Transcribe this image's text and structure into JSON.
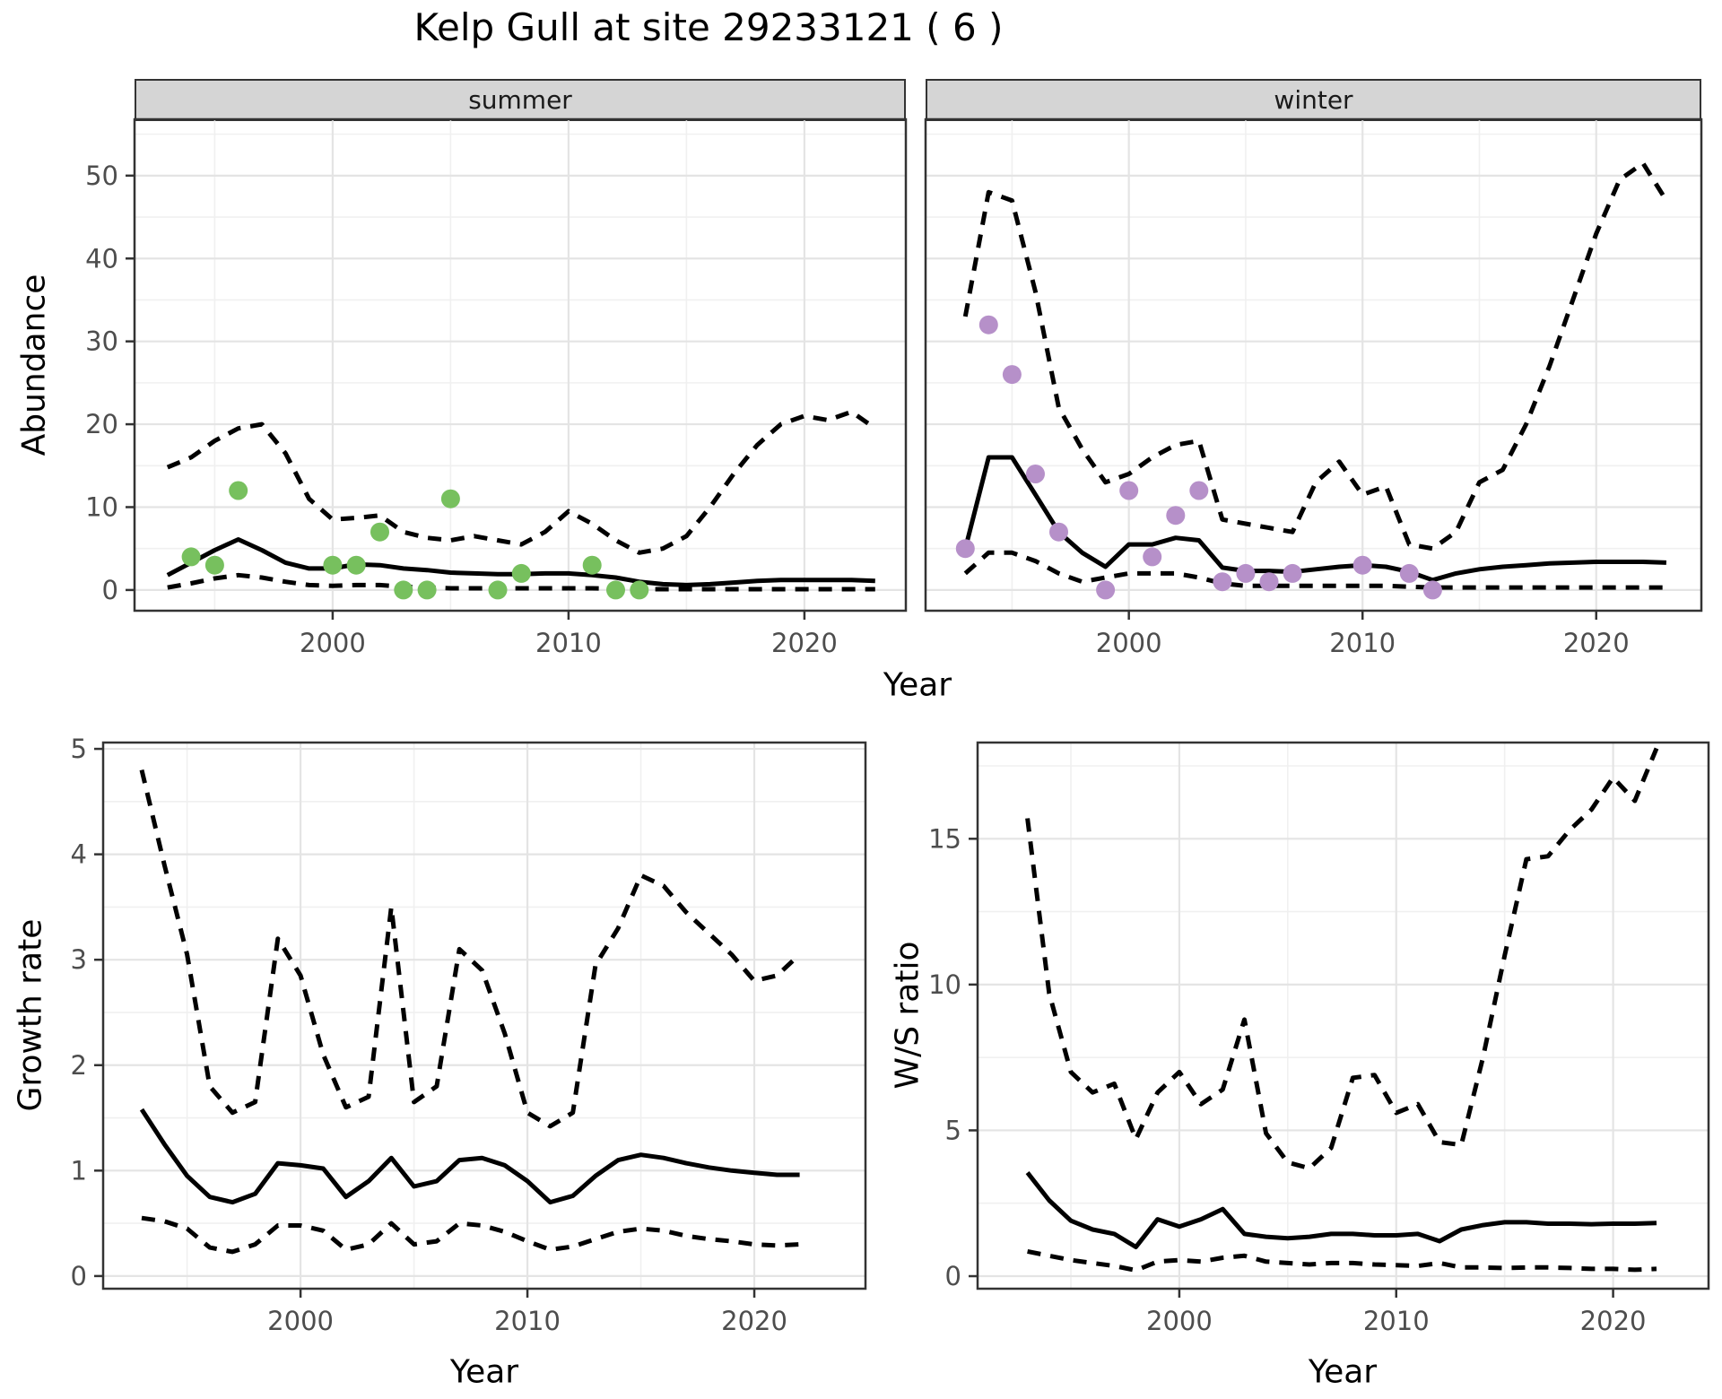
{
  "title": "Kelp Gull at site 29233121 ( 6 )",
  "colors": {
    "summer_points": "#77c05e",
    "winter_points": "#b690c9",
    "line": "#000000",
    "grid_major": "#e4e4e4",
    "grid_minor": "#f0f0f0",
    "panel_border": "#333333",
    "strip_bg": "#d5d5d5",
    "tick_label": "#4d4d4d"
  },
  "chart_data": [
    {
      "id": "abundance-summer",
      "type": "line",
      "facet_label": "summer",
      "xlabel": "Year",
      "ylabel": "Abundance",
      "xlim": [
        1991.6,
        2024.3
      ],
      "ylim": [
        -2.5,
        56.8
      ],
      "x_ticks": [
        2000,
        2010,
        2020
      ],
      "y_ticks": [
        0,
        10,
        20,
        30,
        40,
        50
      ],
      "x_minor": [
        1995,
        2005,
        2015,
        2025
      ],
      "y_minor": [
        5,
        15,
        25,
        35,
        45,
        55
      ],
      "x": [
        1993,
        1994,
        1995,
        1996,
        1997,
        1998,
        1999,
        2000,
        2001,
        2002,
        2003,
        2004,
        2005,
        2006,
        2007,
        2008,
        2009,
        2010,
        2011,
        2012,
        2013,
        2014,
        2015,
        2016,
        2017,
        2018,
        2019,
        2020,
        2021,
        2022,
        2023
      ],
      "series": [
        {
          "name": "upper95",
          "style": "dashed",
          "values": [
            14.8,
            16,
            18,
            19.5,
            20,
            16.5,
            11,
            8.5,
            8.7,
            9,
            7,
            6.3,
            6,
            6.5,
            6,
            5.5,
            7,
            9.5,
            8,
            6,
            4.5,
            5,
            6.5,
            10,
            14,
            17.5,
            20,
            21,
            20.5,
            21.5,
            19.5
          ]
        },
        {
          "name": "lower95",
          "style": "dashed",
          "values": [
            0.3,
            0.8,
            1.4,
            1.8,
            1.5,
            1.0,
            0.6,
            0.5,
            0.6,
            0.6,
            0.4,
            0.3,
            0.2,
            0.2,
            0.2,
            0.2,
            0.2,
            0.2,
            0.2,
            0.15,
            0.1,
            0.1,
            0.1,
            0.1,
            0.1,
            0.1,
            0.1,
            0.1,
            0.1,
            0.1,
            0.1
          ]
        },
        {
          "name": "median",
          "style": "solid",
          "values": [
            1.8,
            3.3,
            4.8,
            6.1,
            4.8,
            3.3,
            2.6,
            2.6,
            3.1,
            3.0,
            2.6,
            2.4,
            2.1,
            2.0,
            1.9,
            1.9,
            2.0,
            2.0,
            1.8,
            1.5,
            1.0,
            0.7,
            0.6,
            0.7,
            0.9,
            1.1,
            1.2,
            1.2,
            1.2,
            1.2,
            1.1
          ]
        }
      ],
      "points": {
        "name": "observed-counts-summer",
        "color": "#77c05e",
        "x": [
          1994,
          1995,
          1996,
          2000,
          2001,
          2002,
          2003,
          2004,
          2005,
          2007,
          2008,
          2011,
          2012,
          2013
        ],
        "y": [
          4,
          3,
          12,
          3,
          3,
          7,
          0,
          0,
          11,
          0,
          2,
          3,
          0,
          0
        ]
      }
    },
    {
      "id": "abundance-winter",
      "type": "line",
      "facet_label": "winter",
      "xlabel": "Year",
      "ylabel": "Abundance",
      "xlim": [
        1991.3,
        2024.5
      ],
      "ylim": [
        -2.5,
        56.8
      ],
      "x_ticks": [
        2000,
        2010,
        2020
      ],
      "y_ticks": [
        0,
        10,
        20,
        30,
        40,
        50
      ],
      "x_minor": [
        1995,
        2005,
        2015,
        2025
      ],
      "y_minor": [
        5,
        15,
        25,
        35,
        45,
        55
      ],
      "x": [
        1993,
        1994,
        1995,
        1996,
        1997,
        1998,
        1999,
        2000,
        2001,
        2002,
        2003,
        2004,
        2005,
        2006,
        2007,
        2008,
        2009,
        2010,
        2011,
        2012,
        2013,
        2014,
        2015,
        2016,
        2017,
        2018,
        2019,
        2020,
        2021,
        2022,
        2023
      ],
      "series": [
        {
          "name": "upper95",
          "style": "dashed",
          "values": [
            33,
            48,
            47,
            36,
            22,
            17,
            13,
            14,
            16,
            17.5,
            18,
            8.5,
            8,
            7.5,
            7,
            13,
            15.5,
            11.5,
            12.5,
            5.5,
            5,
            7,
            13,
            14.5,
            20,
            27,
            35,
            43,
            49.5,
            51.5,
            47
          ]
        },
        {
          "name": "lower95",
          "style": "dashed",
          "values": [
            2,
            4.5,
            4.5,
            3.5,
            2,
            1,
            1.5,
            2,
            2,
            2,
            1.5,
            0.8,
            0.5,
            0.5,
            0.5,
            0.5,
            0.5,
            0.5,
            0.5,
            0.4,
            0.3,
            0.3,
            0.3,
            0.3,
            0.3,
            0.3,
            0.3,
            0.3,
            0.3,
            0.3,
            0.3
          ]
        },
        {
          "name": "median",
          "style": "solid",
          "values": [
            5,
            16,
            16,
            11.5,
            7,
            4.5,
            2.8,
            5.5,
            5.5,
            6.3,
            6.0,
            2.7,
            2.3,
            2.3,
            2.2,
            2.5,
            2.8,
            3.0,
            2.8,
            2.2,
            1.2,
            2.0,
            2.5,
            2.8,
            3.0,
            3.2,
            3.3,
            3.4,
            3.4,
            3.4,
            3.3
          ]
        }
      ],
      "points": {
        "name": "observed-counts-winter",
        "color": "#b690c9",
        "x": [
          1993,
          1994,
          1995,
          1996,
          1997,
          1999,
          2000,
          2001,
          2002,
          2003,
          2004,
          2005,
          2006,
          2007,
          2010,
          2012,
          2013
        ],
        "y": [
          5,
          32,
          26,
          14,
          7,
          0,
          12,
          4,
          9,
          12,
          1,
          2,
          1,
          2,
          3,
          2,
          0
        ]
      }
    },
    {
      "id": "growth-rate",
      "type": "line",
      "facet_label": "",
      "xlabel": "Year",
      "ylabel": "Growth rate",
      "xlim": [
        1991.3,
        2024.9
      ],
      "ylim": [
        -0.12,
        5.06
      ],
      "x_ticks": [
        2000,
        2010,
        2020
      ],
      "y_ticks": [
        0,
        1,
        2,
        3,
        4,
        5
      ],
      "x_minor": [
        1995,
        2005,
        2015,
        2025
      ],
      "y_minor": [
        0.5,
        1.5,
        2.5,
        3.5,
        4.5
      ],
      "x": [
        1993,
        1994,
        1995,
        1996,
        1997,
        1998,
        1999,
        2000,
        2001,
        2002,
        2003,
        2004,
        2005,
        2006,
        2007,
        2008,
        2009,
        2010,
        2011,
        2012,
        2013,
        2014,
        2015,
        2016,
        2017,
        2018,
        2019,
        2020,
        2021,
        2022
      ],
      "series": [
        {
          "name": "upper95",
          "style": "dashed",
          "values": [
            4.8,
            3.9,
            3.05,
            1.8,
            1.55,
            1.65,
            3.2,
            2.85,
            2.1,
            1.6,
            1.7,
            3.5,
            1.65,
            1.8,
            3.1,
            2.9,
            2.3,
            1.55,
            1.42,
            1.55,
            2.95,
            3.3,
            3.8,
            3.7,
            3.45,
            3.25,
            3.05,
            2.8,
            2.85,
            3.05
          ]
        },
        {
          "name": "lower95",
          "style": "dashed",
          "values": [
            0.55,
            0.52,
            0.45,
            0.27,
            0.23,
            0.3,
            0.48,
            0.48,
            0.43,
            0.25,
            0.3,
            0.5,
            0.3,
            0.33,
            0.5,
            0.48,
            0.42,
            0.33,
            0.25,
            0.28,
            0.35,
            0.42,
            0.45,
            0.43,
            0.38,
            0.35,
            0.33,
            0.3,
            0.29,
            0.3
          ]
        },
        {
          "name": "median",
          "style": "solid",
          "values": [
            1.58,
            1.25,
            0.95,
            0.75,
            0.7,
            0.78,
            1.07,
            1.05,
            1.02,
            0.75,
            0.9,
            1.12,
            0.85,
            0.9,
            1.1,
            1.12,
            1.05,
            0.9,
            0.7,
            0.76,
            0.95,
            1.1,
            1.15,
            1.12,
            1.07,
            1.03,
            1.0,
            0.98,
            0.96,
            0.96
          ]
        }
      ],
      "points": null
    },
    {
      "id": "ws-ratio",
      "type": "line",
      "facet_label": "",
      "xlabel": "Year",
      "ylabel": "W/S ratio",
      "xlim": [
        1990.7,
        2024.4
      ],
      "ylim": [
        -0.43,
        18.3
      ],
      "x_ticks": [
        2000,
        2010,
        2020
      ],
      "y_ticks": [
        0,
        5,
        10,
        15
      ],
      "x_minor": [
        1995,
        2005,
        2015,
        2025
      ],
      "y_minor": [
        2.5,
        7.5,
        12.5,
        17.5
      ],
      "x": [
        1993,
        1994,
        1995,
        1996,
        1997,
        1998,
        1999,
        2000,
        2001,
        2002,
        2003,
        2004,
        2005,
        2006,
        2007,
        2008,
        2009,
        2010,
        2011,
        2012,
        2013,
        2014,
        2015,
        2016,
        2017,
        2018,
        2019,
        2020,
        2021,
        2022
      ],
      "series": [
        {
          "name": "upper95",
          "style": "dashed",
          "values": [
            15.7,
            9.7,
            7.0,
            6.3,
            6.6,
            4.7,
            6.3,
            7.0,
            5.9,
            6.4,
            8.8,
            4.9,
            3.9,
            3.7,
            4.4,
            6.8,
            6.9,
            5.6,
            5.9,
            4.6,
            4.5,
            7.5,
            11.0,
            14.3,
            14.4,
            15.3,
            16.0,
            17.1,
            16.3,
            18.1
          ]
        },
        {
          "name": "lower95",
          "style": "dashed",
          "values": [
            0.85,
            0.7,
            0.55,
            0.45,
            0.35,
            0.2,
            0.5,
            0.55,
            0.5,
            0.63,
            0.7,
            0.5,
            0.45,
            0.4,
            0.45,
            0.45,
            0.4,
            0.38,
            0.35,
            0.45,
            0.3,
            0.3,
            0.28,
            0.3,
            0.3,
            0.28,
            0.25,
            0.25,
            0.22,
            0.25
          ]
        },
        {
          "name": "median",
          "style": "solid",
          "values": [
            3.55,
            2.6,
            1.9,
            1.6,
            1.45,
            1.0,
            1.95,
            1.7,
            1.95,
            2.3,
            1.45,
            1.35,
            1.3,
            1.35,
            1.45,
            1.45,
            1.4,
            1.4,
            1.45,
            1.2,
            1.6,
            1.75,
            1.85,
            1.85,
            1.8,
            1.8,
            1.78,
            1.8,
            1.8,
            1.82
          ]
        }
      ],
      "points": null
    }
  ]
}
